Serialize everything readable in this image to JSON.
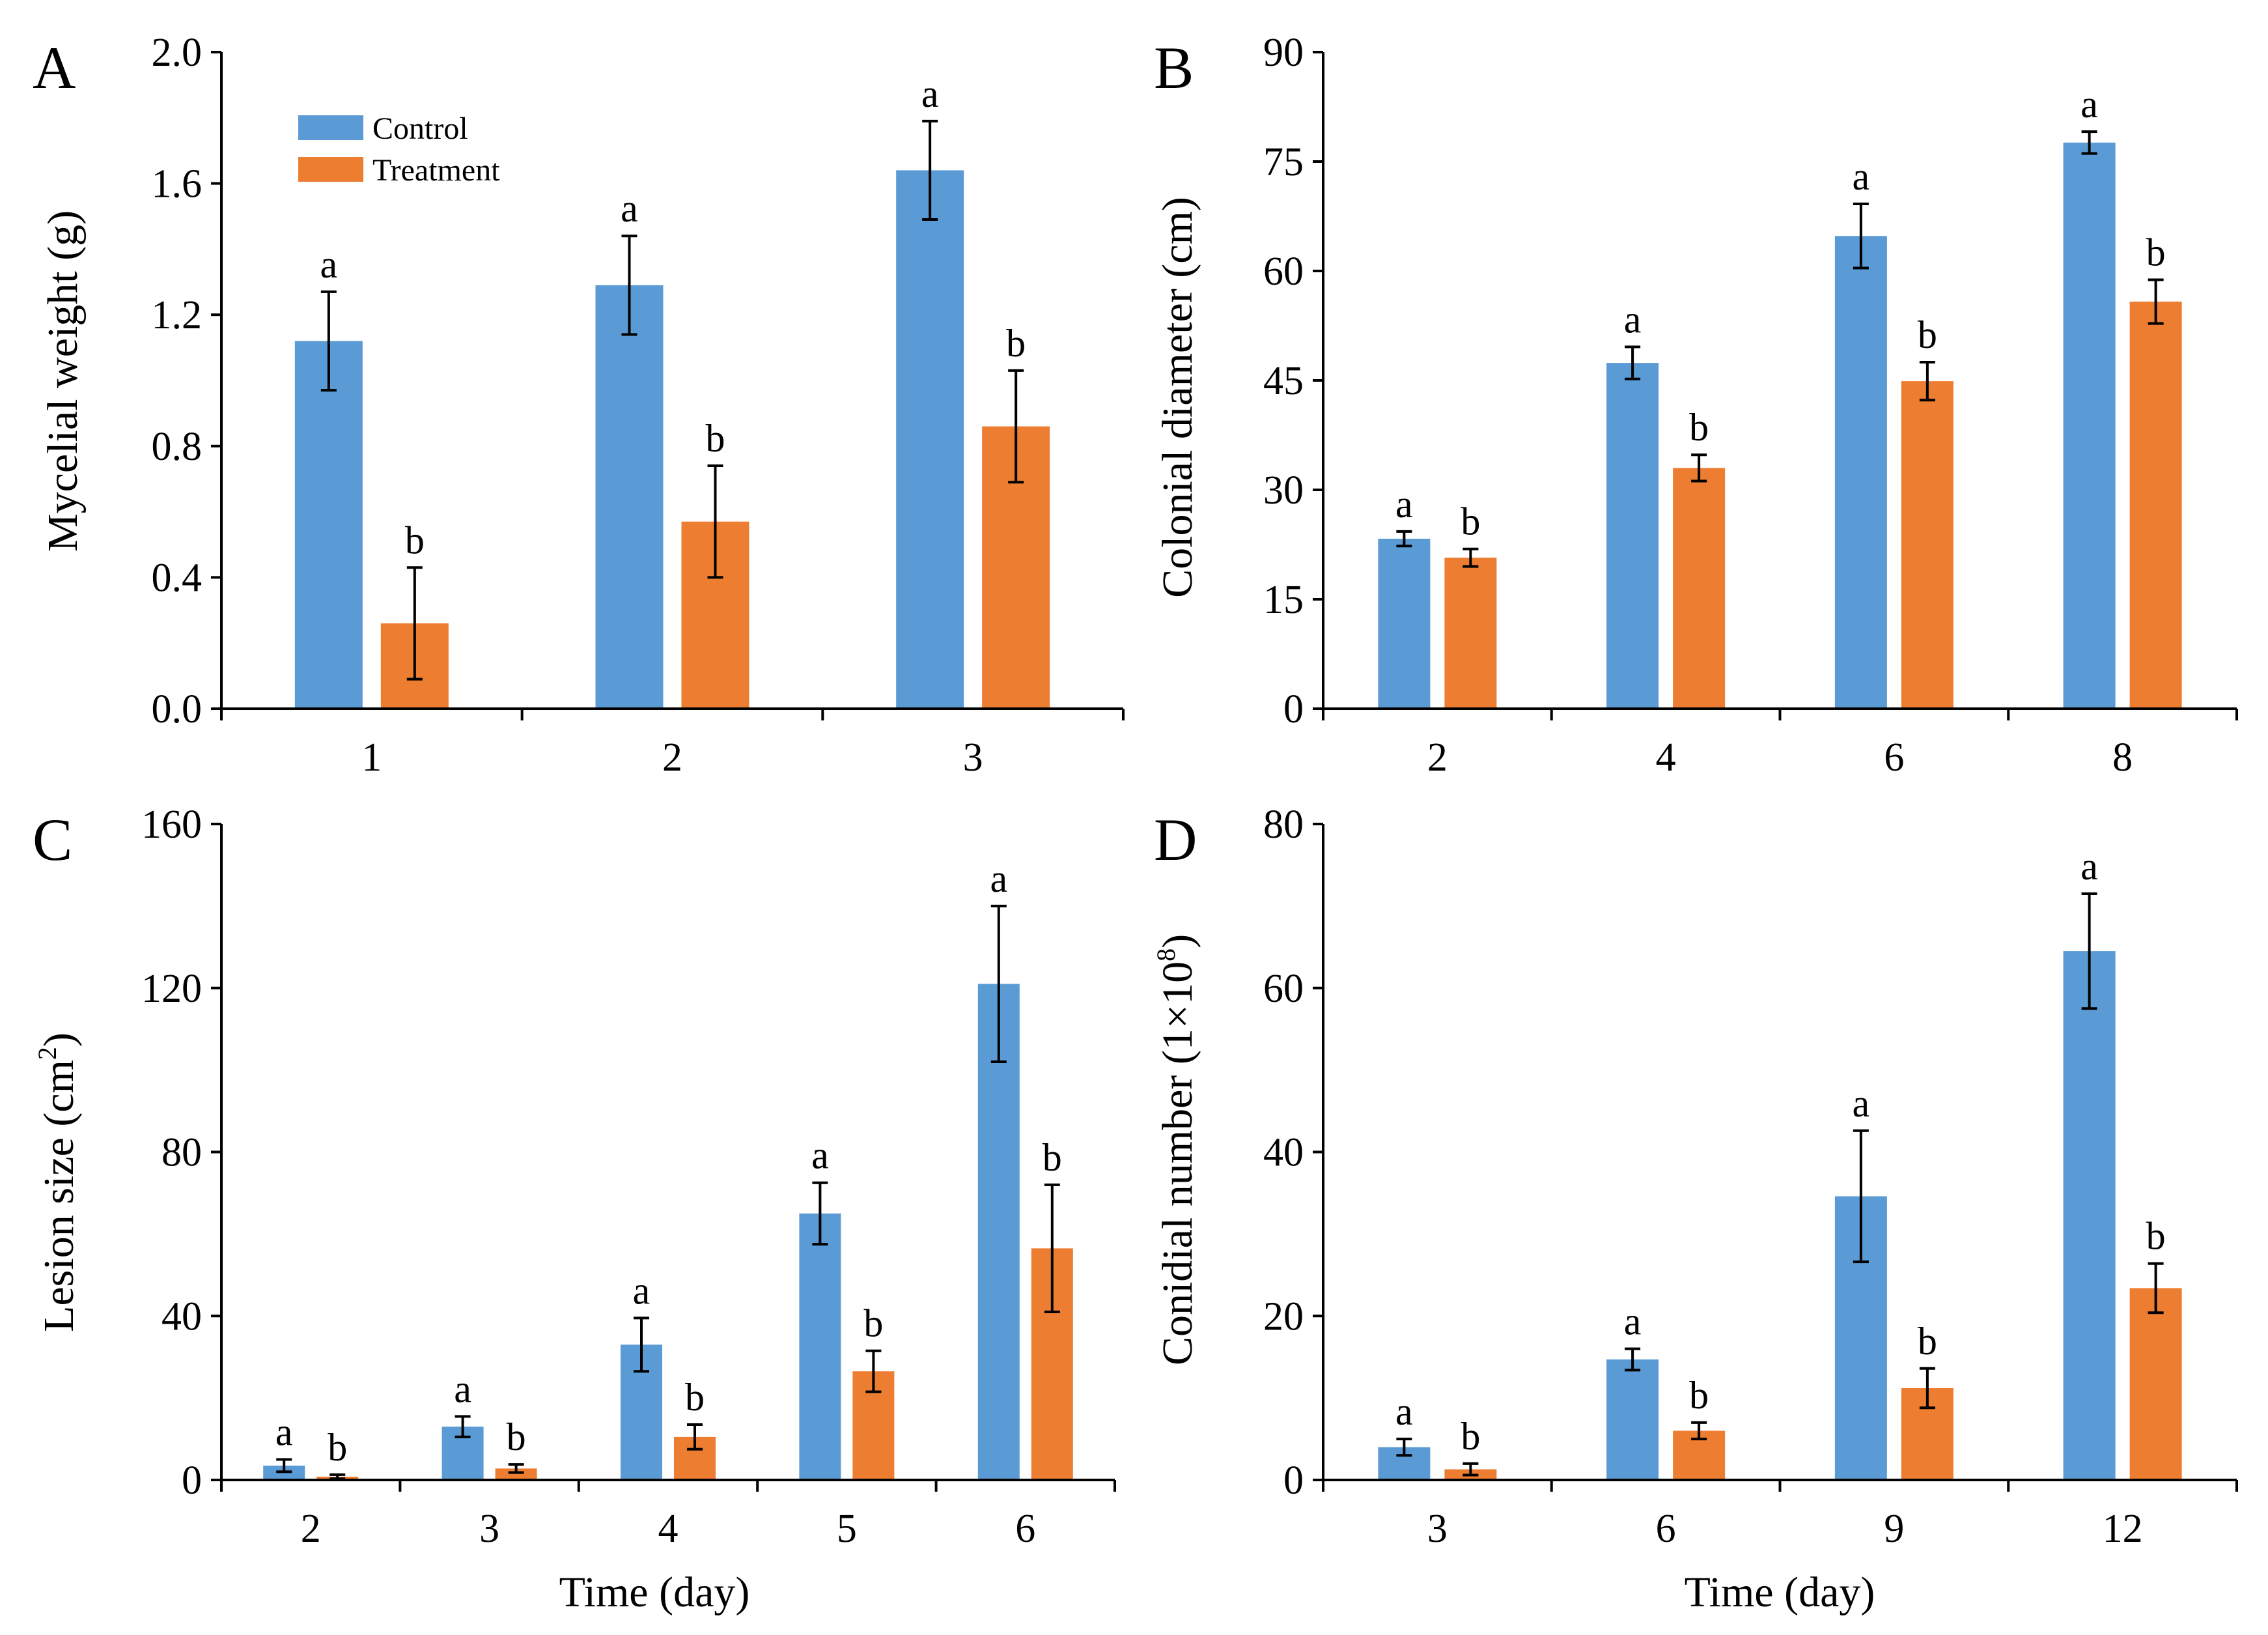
{
  "colors": {
    "control": "#5B9BD5",
    "treatment": "#ED7D31"
  },
  "legend": {
    "control": "Control",
    "treatment": "Treatment"
  },
  "chart_data": [
    {
      "type": "bar",
      "panel": "A",
      "title": "",
      "xlabel": "",
      "ylabel": "Mycelial weight (g)",
      "ylim": [
        0,
        2.0
      ],
      "yticks": [
        "0.0",
        "0.4",
        "0.8",
        "1.2",
        "1.6",
        "2.0"
      ],
      "categories": [
        "1",
        "2",
        "3"
      ],
      "series": [
        {
          "name": "Control",
          "values": [
            1.12,
            1.29,
            1.64
          ],
          "errors": [
            0.15,
            0.15,
            0.15
          ],
          "labels": [
            "a",
            "a",
            "a"
          ]
        },
        {
          "name": "Treatment",
          "values": [
            0.26,
            0.57,
            0.86
          ],
          "errors": [
            0.17,
            0.17,
            0.17
          ],
          "labels": [
            "b",
            "b",
            "b"
          ]
        }
      ],
      "legend_position": "top-left"
    },
    {
      "type": "bar",
      "panel": "B",
      "title": "",
      "xlabel": "",
      "ylabel": "Colonial diameter (cm)",
      "ylim": [
        0,
        90
      ],
      "yticks": [
        "0",
        "15",
        "30",
        "45",
        "60",
        "75",
        "90"
      ],
      "categories": [
        "2",
        "4",
        "6",
        "8"
      ],
      "series": [
        {
          "name": "Control",
          "values": [
            23.3,
            47.4,
            64.8,
            77.6
          ],
          "errors": [
            1.0,
            2.2,
            4.4,
            1.5
          ],
          "labels": [
            "a",
            "a",
            "a",
            "a"
          ]
        },
        {
          "name": "Treatment",
          "values": [
            20.7,
            33.0,
            44.9,
            55.8
          ],
          "errors": [
            1.2,
            1.8,
            2.6,
            3.0
          ],
          "labels": [
            "b",
            "b",
            "b",
            "b"
          ]
        }
      ]
    },
    {
      "type": "bar",
      "panel": "C",
      "title": "",
      "xlabel": "Time (day)",
      "ylabel": "Lesion size (cm",
      "ylabel_sup": "2",
      "ylabel_tail": ")",
      "ylim": [
        0,
        160
      ],
      "yticks": [
        "0",
        "40",
        "80",
        "120",
        "160"
      ],
      "categories": [
        "2",
        "3",
        "4",
        "5",
        "6"
      ],
      "series": [
        {
          "name": "Control",
          "values": [
            3.5,
            13.0,
            33.0,
            65.0,
            121.0
          ],
          "errors": [
            1.5,
            2.5,
            6.5,
            7.5,
            19.0
          ],
          "labels": [
            "a",
            "a",
            "a",
            "a",
            "a"
          ]
        },
        {
          "name": "Treatment",
          "values": [
            0.8,
            2.8,
            10.5,
            26.5,
            56.5
          ],
          "errors": [
            0.5,
            1.0,
            3.0,
            5.0,
            15.5
          ],
          "labels": [
            "b",
            "b",
            "b",
            "b",
            "b"
          ]
        }
      ]
    },
    {
      "type": "bar",
      "panel": "D",
      "title": "",
      "xlabel": "Time (day)",
      "ylabel": "Conidial number (1×10",
      "ylabel_sup": "8",
      "ylabel_tail": ")",
      "ylim": [
        0,
        80
      ],
      "yticks": [
        "0",
        "20",
        "40",
        "60",
        "80"
      ],
      "categories": [
        "3",
        "6",
        "9",
        "12"
      ],
      "series": [
        {
          "name": "Control",
          "values": [
            4.0,
            14.7,
            34.6,
            64.5
          ],
          "errors": [
            1.0,
            1.3,
            8.0,
            7.0
          ],
          "labels": [
            "a",
            "a",
            "a",
            "a"
          ]
        },
        {
          "name": "Treatment",
          "values": [
            1.3,
            6.0,
            11.2,
            23.4
          ],
          "errors": [
            0.7,
            1.0,
            2.4,
            3.0
          ],
          "labels": [
            "b",
            "b",
            "b",
            "b"
          ]
        }
      ]
    }
  ]
}
